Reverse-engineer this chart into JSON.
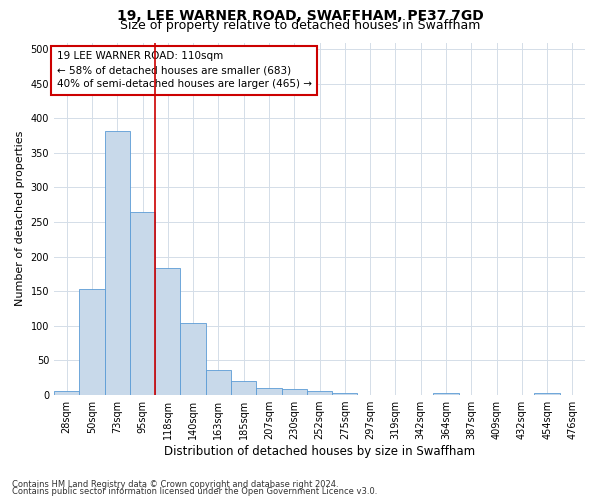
{
  "title": "19, LEE WARNER ROAD, SWAFFHAM, PE37 7GD",
  "subtitle": "Size of property relative to detached houses in Swaffham",
  "xlabel": "Distribution of detached houses by size in Swaffham",
  "ylabel": "Number of detached properties",
  "footer_line1": "Contains HM Land Registry data © Crown copyright and database right 2024.",
  "footer_line2": "Contains public sector information licensed under the Open Government Licence v3.0.",
  "bin_labels": [
    "28sqm",
    "50sqm",
    "73sqm",
    "95sqm",
    "118sqm",
    "140sqm",
    "163sqm",
    "185sqm",
    "207sqm",
    "230sqm",
    "252sqm",
    "275sqm",
    "297sqm",
    "319sqm",
    "342sqm",
    "364sqm",
    "387sqm",
    "409sqm",
    "432sqm",
    "454sqm",
    "476sqm"
  ],
  "bar_values": [
    5,
    153,
    382,
    264,
    183,
    103,
    36,
    20,
    10,
    8,
    5,
    2,
    0,
    0,
    0,
    3,
    0,
    0,
    0,
    3,
    0
  ],
  "bar_color": "#c8d9ea",
  "bar_edge_color": "#5b9bd5",
  "ylim": [
    0,
    510
  ],
  "yticks": [
    0,
    50,
    100,
    150,
    200,
    250,
    300,
    350,
    400,
    450,
    500
  ],
  "vline_color": "#cc0000",
  "annotation_line1": "19 LEE WARNER ROAD: 110sqm",
  "annotation_line2": "← 58% of detached houses are smaller (683)",
  "annotation_line3": "40% of semi-detached houses are larger (465) →",
  "annotation_box_color": "#ffffff",
  "annotation_box_edge_color": "#cc0000",
  "grid_color": "#d4dde8",
  "background_color": "#ffffff",
  "title_fontsize": 10,
  "subtitle_fontsize": 9,
  "ylabel_fontsize": 8,
  "xlabel_fontsize": 8.5,
  "tick_fontsize": 7,
  "annotation_fontsize": 7.5,
  "footer_fontsize": 6
}
